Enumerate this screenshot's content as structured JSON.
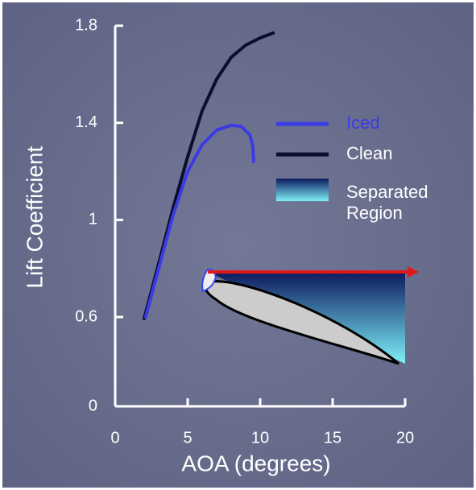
{
  "chart_data": {
    "type": "line",
    "xlabel": "AOA (degrees)",
    "ylabel": "Lift Coefficient",
    "xlim": [
      0,
      20
    ],
    "xticks": [
      0,
      5,
      10,
      15,
      20
    ],
    "ylim": [
      0,
      1.8
    ],
    "yticks": [
      0,
      0.6,
      1.0,
      1.4,
      1.8
    ],
    "y_break": [
      0,
      0.6
    ],
    "series": [
      {
        "name": "Iced",
        "color": "#3b3be6",
        "x": [
          2.1,
          3,
          4,
          5,
          6,
          7,
          8,
          8.7,
          9.3,
          9.5,
          9.55
        ],
        "values": [
          0.6,
          0.8,
          1.02,
          1.2,
          1.31,
          1.37,
          1.39,
          1.385,
          1.35,
          1.3,
          1.24
        ]
      },
      {
        "name": "Clean",
        "color": "#0d0d30",
        "x": [
          2,
          3,
          4,
          5,
          6,
          7,
          8,
          9,
          10,
          10.9
        ],
        "values": [
          0.59,
          0.82,
          1.05,
          1.26,
          1.45,
          1.58,
          1.67,
          1.72,
          1.75,
          1.77
        ]
      }
    ],
    "region": {
      "name": "Separated Region"
    }
  }
}
